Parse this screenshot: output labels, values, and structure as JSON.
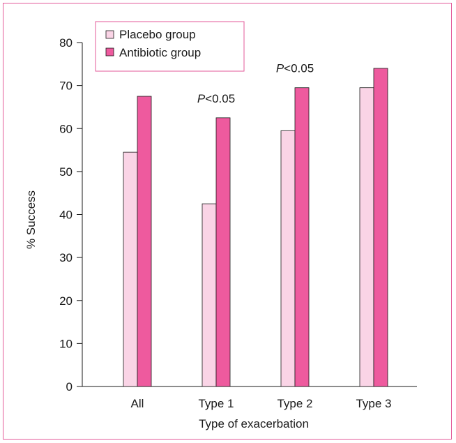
{
  "chart_data": {
    "type": "bar",
    "title": "",
    "xlabel": "Type of exacerbation",
    "ylabel": "% Success",
    "ylim": [
      0,
      80
    ],
    "yticks": [
      0,
      10,
      20,
      30,
      40,
      50,
      60,
      70,
      80
    ],
    "categories": [
      "All",
      "Type 1",
      "Type 2",
      "Type 3"
    ],
    "series": [
      {
        "name": "Placebo group",
        "color": "#fad4e6",
        "values": [
          54.5,
          42.5,
          59.5,
          69.5
        ]
      },
      {
        "name": "Antibiotic group",
        "color": "#ee5a9e",
        "values": [
          67.5,
          62.5,
          69.5,
          74
        ]
      }
    ],
    "legend_position": "top-left",
    "annotations": [
      {
        "category": "Type 1",
        "prefix": "P",
        "text": "<0.05"
      },
      {
        "category": "Type 2",
        "prefix": "P",
        "text": "<0.05"
      }
    ],
    "grid": false
  },
  "colors": {
    "frame": "#e35a9a",
    "axis": "#1a1a1a"
  }
}
